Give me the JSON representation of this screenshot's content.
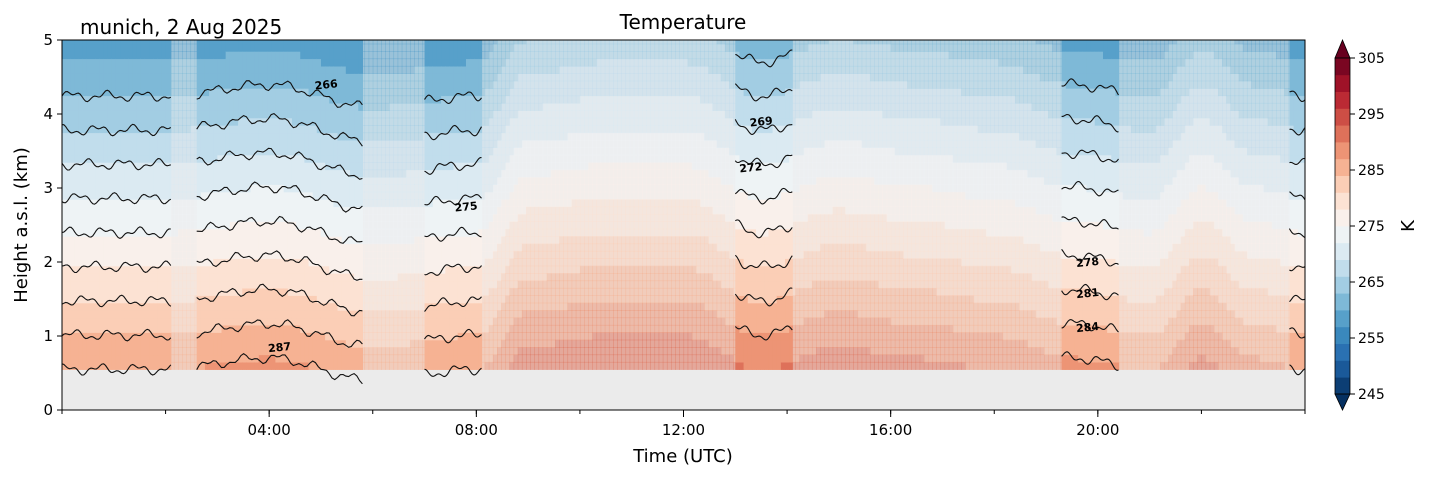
{
  "chart_data": {
    "type": "heatmap",
    "title": "Temperature",
    "subtitle": "munich, 2 Aug 2025",
    "xlabel": "Time (UTC)",
    "ylabel": "Height a.s.l. (km)",
    "xlim_hours": [
      0,
      24
    ],
    "ylim_km": [
      0,
      5
    ],
    "x_ticks": [
      {
        "hour": 4,
        "label": "04:00"
      },
      {
        "hour": 8,
        "label": "08:00"
      },
      {
        "hour": 12,
        "label": "12:00"
      },
      {
        "hour": 16,
        "label": "16:00"
      },
      {
        "hour": 20,
        "label": "20:00"
      }
    ],
    "y_ticks": [
      {
        "value": 0,
        "label": "0"
      },
      {
        "value": 1,
        "label": "1"
      },
      {
        "value": 2,
        "label": "2"
      },
      {
        "value": 3,
        "label": "3"
      },
      {
        "value": 4,
        "label": "4"
      },
      {
        "value": 5,
        "label": "5"
      }
    ],
    "data_bottom_km": 0.55,
    "colorbar": {
      "label": "K",
      "vmin": 245,
      "vmax": 305,
      "ticks": [
        {
          "value": 305,
          "label": "305"
        },
        {
          "value": 295,
          "label": "295"
        },
        {
          "value": 285,
          "label": "285"
        },
        {
          "value": 275,
          "label": "275"
        },
        {
          "value": 265,
          "label": "265"
        },
        {
          "value": 255,
          "label": "255"
        },
        {
          "value": 245,
          "label": "245"
        }
      ],
      "extend": "both"
    },
    "surface_temperature_by_hour": [
      {
        "hour": 0,
        "K": 287
      },
      {
        "hour": 2,
        "K": 287
      },
      {
        "hour": 4,
        "K": 288
      },
      {
        "hour": 6,
        "K": 286
      },
      {
        "hour": 8,
        "K": 287
      },
      {
        "hour": 9,
        "K": 292
      },
      {
        "hour": 10.5,
        "K": 293
      },
      {
        "hour": 12,
        "K": 293
      },
      {
        "hour": 13.5,
        "K": 290
      },
      {
        "hour": 15,
        "K": 292
      },
      {
        "hour": 16.5,
        "K": 291
      },
      {
        "hour": 18,
        "K": 290
      },
      {
        "hour": 19.5,
        "K": 288
      },
      {
        "hour": 21,
        "K": 287
      },
      {
        "hour": 22,
        "K": 291
      },
      {
        "hour": 23,
        "K": 288
      },
      {
        "hour": 24,
        "K": 287
      }
    ],
    "lapse_rate_K_per_km": 6.5,
    "observation_periods_hours": [
      [
        0,
        2.1
      ],
      [
        2.6,
        5.8
      ],
      [
        7.0,
        8.1
      ],
      [
        13.0,
        14.1
      ],
      [
        19.3,
        20.4
      ],
      [
        23.7,
        24.0
      ]
    ],
    "isotherm_levels_K": [
      263,
      266,
      269,
      272,
      275,
      278,
      281,
      284,
      287
    ],
    "contour_labels": [
      {
        "text": "266",
        "hour": 5.1,
        "km": 4.4
      },
      {
        "text": "287",
        "hour": 4.2,
        "km": 0.85
      },
      {
        "text": "275",
        "hour": 7.8,
        "km": 2.75
      },
      {
        "text": "269",
        "hour": 13.5,
        "km": 3.9
      },
      {
        "text": "272",
        "hour": 13.3,
        "km": 3.28
      },
      {
        "text": "278",
        "hour": 19.8,
        "km": 2.0
      },
      {
        "text": "281",
        "hour": 19.8,
        "km": 1.58
      },
      {
        "text": "284",
        "hour": 19.8,
        "km": 1.12
      }
    ]
  }
}
